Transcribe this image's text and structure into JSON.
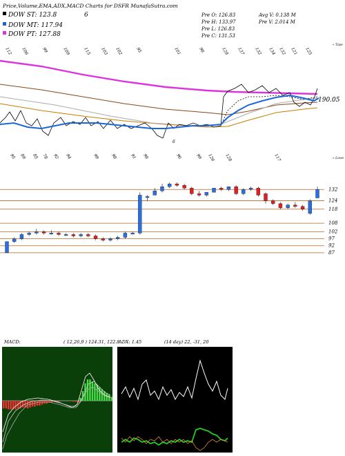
{
  "header": {
    "title": "Price,Volume,EMA,ADX,MACD Charts for DSFR MunafaSutra.com",
    "legend": [
      {
        "label": "DOW ST: 123.8",
        "color": "#000000"
      },
      {
        "label": "DOW MT: 117.94",
        "color": "#1a66d9"
      },
      {
        "label": "DOW PT: 127.88",
        "color": "#dd33dd"
      }
    ],
    "legend_number": "6",
    "stats": [
      [
        "Pre O: 126.83",
        "Avg V: 0.138 M"
      ],
      [
        "Pre H: 133.97",
        "Pre V: 2.014 M"
      ],
      [
        "Pre L: 126.83",
        ""
      ],
      [
        "Pre C: 131.53",
        ""
      ]
    ]
  },
  "ema_panel": {
    "top_labels": [
      "112",
      "106",
      "99",
      "109",
      "115",
      "103",
      "102",
      "95",
      "101",
      "98",
      "128",
      "137",
      "132",
      "134",
      "132",
      "121",
      "125"
    ],
    "bottom_labels": [
      "95",
      "89",
      "85",
      "78",
      "92",
      "94",
      "99",
      "98",
      "91",
      "98",
      "96",
      "99",
      "126",
      "128",
      "117"
    ],
    "right_top": "« Tops",
    "right_bottom": "« Lows",
    "last_value": "190.05",
    "low_marker": "6"
  },
  "price_panel": {
    "levels": [
      "132",
      "124",
      "118",
      "108",
      "102",
      "97",
      "92",
      "87"
    ],
    "candles": [
      {
        "o": 87,
        "h": 95,
        "l": 87,
        "c": 95
      },
      {
        "o": 95,
        "h": 98,
        "l": 94,
        "c": 97
      },
      {
        "o": 97,
        "h": 101,
        "l": 96,
        "c": 100
      },
      {
        "o": 100,
        "h": 102,
        "l": 99,
        "c": 101
      },
      {
        "o": 101,
        "h": 104,
        "l": 100,
        "c": 102
      },
      {
        "o": 102,
        "h": 103,
        "l": 100,
        "c": 101
      },
      {
        "o": 101,
        "h": 103,
        "l": 100,
        "c": 101
      },
      {
        "o": 101,
        "h": 102,
        "l": 99,
        "c": 100
      },
      {
        "o": 100,
        "h": 101,
        "l": 99,
        "c": 100
      },
      {
        "o": 100,
        "h": 101,
        "l": 98,
        "c": 99
      },
      {
        "o": 99,
        "h": 101,
        "l": 98,
        "c": 100
      },
      {
        "o": 100,
        "h": 101,
        "l": 98,
        "c": 99
      },
      {
        "o": 99,
        "h": 100,
        "l": 96,
        "c": 97
      },
      {
        "o": 97,
        "h": 98,
        "l": 95,
        "c": 96
      },
      {
        "o": 96,
        "h": 98,
        "l": 95,
        "c": 97
      },
      {
        "o": 97,
        "h": 99,
        "l": 96,
        "c": 98
      },
      {
        "o": 98,
        "h": 102,
        "l": 97,
        "c": 101
      },
      {
        "o": 101,
        "h": 102,
        "l": 100,
        "c": 101
      },
      {
        "o": 101,
        "h": 130,
        "l": 100,
        "c": 128
      },
      {
        "o": 127,
        "h": 128,
        "l": 124,
        "c": 127
      },
      {
        "o": 128,
        "h": 133,
        "l": 128,
        "c": 131
      },
      {
        "o": 131,
        "h": 136,
        "l": 130,
        "c": 134
      },
      {
        "o": 134,
        "h": 137,
        "l": 133,
        "c": 136
      },
      {
        "o": 136,
        "h": 137,
        "l": 134,
        "c": 135
      },
      {
        "o": 135,
        "h": 136,
        "l": 132,
        "c": 133
      },
      {
        "o": 133,
        "h": 134,
        "l": 128,
        "c": 129
      },
      {
        "o": 129,
        "h": 131,
        "l": 127,
        "c": 128
      },
      {
        "o": 128,
        "h": 130,
        "l": 127,
        "c": 130
      },
      {
        "o": 130,
        "h": 133,
        "l": 130,
        "c": 133
      },
      {
        "o": 133,
        "h": 134,
        "l": 131,
        "c": 132
      },
      {
        "o": 132,
        "h": 134,
        "l": 131,
        "c": 134
      },
      {
        "o": 134,
        "h": 135,
        "l": 128,
        "c": 129
      },
      {
        "o": 129,
        "h": 133,
        "l": 128,
        "c": 132
      },
      {
        "o": 133,
        "h": 134,
        "l": 131,
        "c": 133
      },
      {
        "o": 133,
        "h": 134,
        "l": 127,
        "c": 128
      },
      {
        "o": 129,
        "h": 130,
        "l": 122,
        "c": 124
      },
      {
        "o": 124,
        "h": 125,
        "l": 121,
        "c": 122
      },
      {
        "o": 122,
        "h": 123,
        "l": 118,
        "c": 119
      },
      {
        "o": 119,
        "h": 122,
        "l": 118,
        "c": 121
      },
      {
        "o": 121,
        "h": 123,
        "l": 119,
        "c": 120
      },
      {
        "o": 120,
        "h": 121,
        "l": 117,
        "c": 118
      },
      {
        "o": 115,
        "h": 125,
        "l": 114,
        "c": 124
      },
      {
        "o": 126,
        "h": 134,
        "l": 126,
        "c": 132
      }
    ]
  },
  "macd_panel": {
    "label": "MACD:",
    "values": "( 12,26,9 ) 124.31, 122.8"
  },
  "adx_panel": {
    "label": "ADX: 1.45",
    "values": "(14 day) 22, -31, 20"
  },
  "chart_data": {
    "type": "candlestick",
    "title": "Price,Volume,EMA,ADX,MACD Charts for DSFR MunafaSutra.com",
    "price_levels": [
      132,
      124,
      118,
      108,
      102,
      97,
      92,
      87
    ],
    "recent_tops": [
      112,
      106,
      99,
      109,
      115,
      103,
      102,
      95,
      101,
      98,
      128,
      137,
      132,
      134,
      132,
      121,
      125
    ],
    "recent_lows": [
      95,
      89,
      85,
      78,
      92,
      94,
      99,
      98,
      91,
      98,
      96,
      99,
      126,
      128,
      117
    ],
    "dow_st": 123.8,
    "dow_mt": 117.94,
    "dow_pt": 127.88,
    "prev_open": 126.83,
    "prev_high": 133.97,
    "prev_low": 126.83,
    "prev_close": 131.53,
    "avg_volume_m": 0.138,
    "prev_volume_m": 2.014,
    "macd": [
      124.31,
      122.8
    ],
    "adx": {
      "adx": 1.45,
      "plus_di": 22,
      "minus_di": -31,
      "value": 20
    }
  }
}
